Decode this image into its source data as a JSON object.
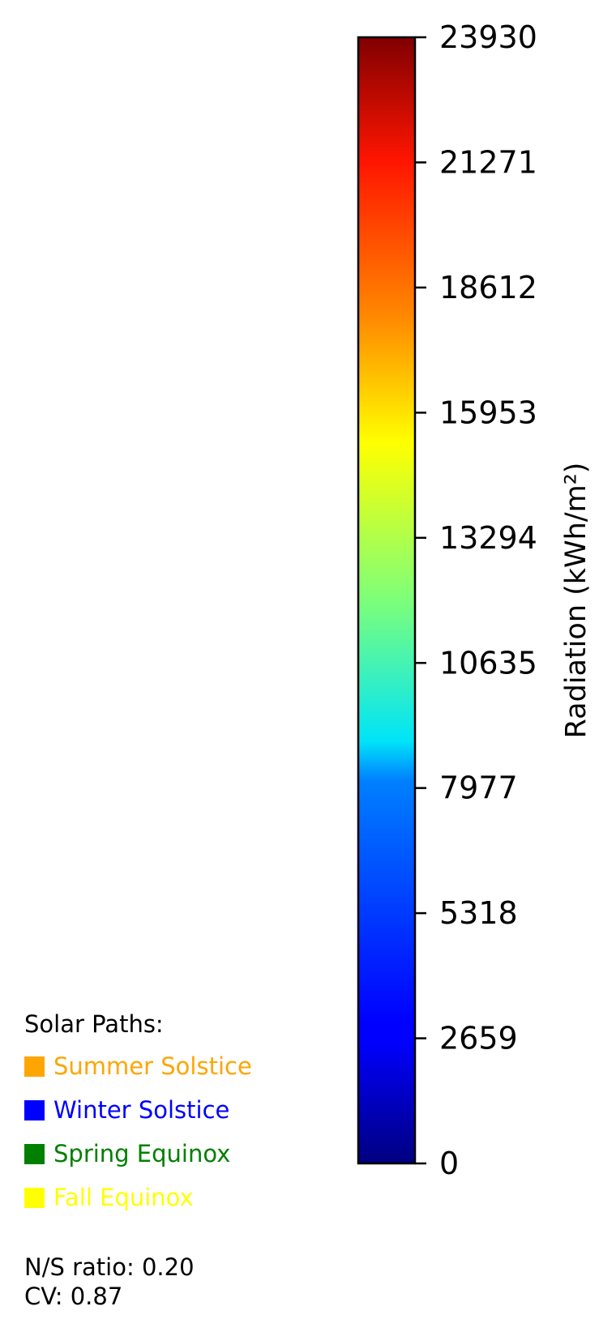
{
  "chart_data": {
    "type": "colorbar",
    "colormap": "jet",
    "label": "Radiation (kWh/m²)",
    "range": [
      0,
      23930
    ],
    "ticks": [
      0,
      2659,
      5318,
      7977,
      10635,
      13294,
      15953,
      18612,
      21271,
      23930
    ],
    "tick_labels": [
      "0",
      "2659",
      "5318",
      "7977",
      "10635",
      "13294",
      "15953",
      "18612",
      "21271",
      "23930"
    ]
  },
  "legend": {
    "title": "Solar Paths:",
    "items": [
      {
        "label": "Summer Solstice",
        "color": "#ffa500"
      },
      {
        "label": "Winter Solstice",
        "color": "#0000ff"
      },
      {
        "label": "Spring Equinox",
        "color": "#008000"
      },
      {
        "label": "Fall Equinox",
        "color": "#ffff00"
      }
    ]
  },
  "stats": {
    "ns_ratio": "N/S ratio: 0.20",
    "cv": "CV: 0.87"
  }
}
